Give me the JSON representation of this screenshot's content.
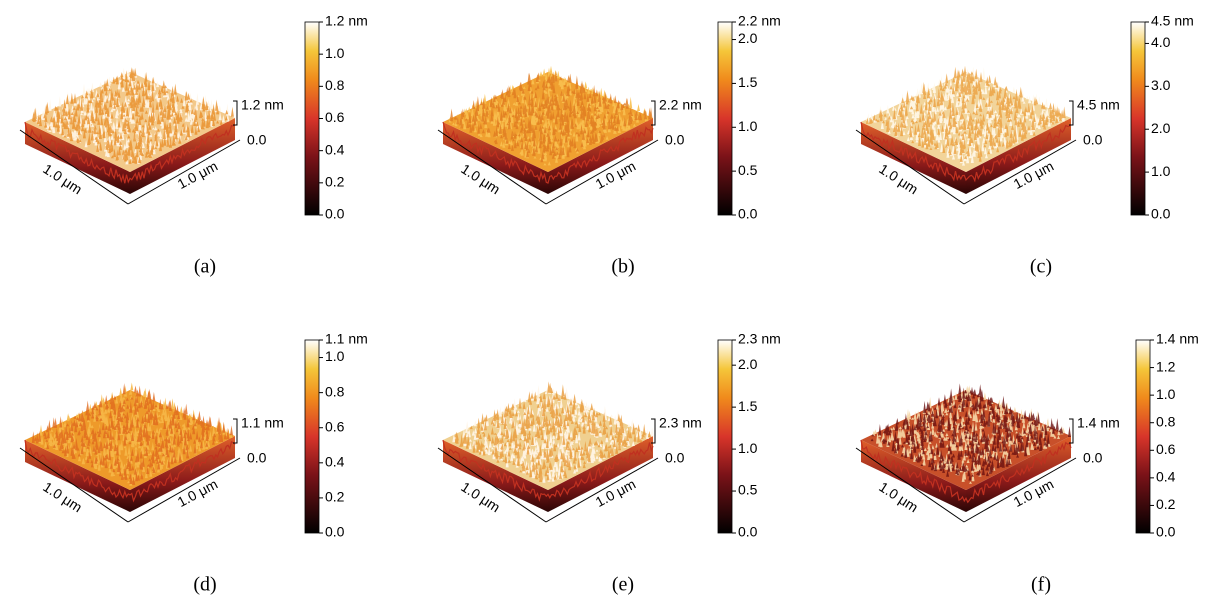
{
  "panels": [
    {
      "label": "(a)",
      "x_label": "1.0 μm",
      "y_label": "1.0 μm",
      "z_bar": {
        "top": "1.2 nm",
        "bottom": "0.0"
      },
      "colorbar": {
        "clim": [
          0,
          1.2
        ],
        "ticks": [
          {
            "value": 0,
            "label": "0.0"
          },
          {
            "value": 0.2,
            "label": "0.2"
          },
          {
            "value": 0.4,
            "label": "0.4"
          },
          {
            "value": 0.6,
            "label": "0.6"
          },
          {
            "value": 0.8,
            "label": "0.8"
          },
          {
            "value": 1,
            "label": "1.0"
          },
          {
            "value": 1.2,
            "label": "1.2 nm"
          }
        ]
      }
    },
    {
      "label": "(b)",
      "x_label": "1.0 μm",
      "y_label": "1.0 μm",
      "z_bar": {
        "top": "2.2 nm",
        "bottom": "0.0"
      },
      "colorbar": {
        "clim": [
          0,
          2.2
        ],
        "ticks": [
          {
            "value": 0,
            "label": "0.0"
          },
          {
            "value": 0.5,
            "label": "0.5"
          },
          {
            "value": 1,
            "label": "1.0"
          },
          {
            "value": 1.5,
            "label": "1.5"
          },
          {
            "value": 2,
            "label": "2.0"
          },
          {
            "value": 2.2,
            "label": "2.2 nm"
          }
        ]
      }
    },
    {
      "label": "(c)",
      "x_label": "1.0 μm",
      "y_label": "1.0 μm",
      "z_bar": {
        "top": "4.5 nm",
        "bottom": "0.0"
      },
      "colorbar": {
        "clim": [
          0,
          4.5
        ],
        "ticks": [
          {
            "value": 0,
            "label": "0.0"
          },
          {
            "value": 1,
            "label": "1.0"
          },
          {
            "value": 2,
            "label": "2.0"
          },
          {
            "value": 3,
            "label": "3.0"
          },
          {
            "value": 4,
            "label": "4.0"
          },
          {
            "value": 4.5,
            "label": "4.5 nm"
          }
        ]
      }
    },
    {
      "label": "(d)",
      "x_label": "1.0 μm",
      "y_label": "1.0 μm",
      "z_bar": {
        "top": "1.1 nm",
        "bottom": "0.0"
      },
      "colorbar": {
        "clim": [
          0,
          1.1
        ],
        "ticks": [
          {
            "value": 0,
            "label": "0.0"
          },
          {
            "value": 0.2,
            "label": "0.2"
          },
          {
            "value": 0.4,
            "label": "0.4"
          },
          {
            "value": 0.6,
            "label": "0.6"
          },
          {
            "value": 0.8,
            "label": "0.8"
          },
          {
            "value": 1,
            "label": "1.0"
          },
          {
            "value": 1.1,
            "label": "1.1 nm"
          }
        ]
      }
    },
    {
      "label": "(e)",
      "x_label": "1.0 μm",
      "y_label": "1.0 μm",
      "z_bar": {
        "top": "2.3 nm",
        "bottom": "0.0"
      },
      "colorbar": {
        "clim": [
          0,
          2.3
        ],
        "ticks": [
          {
            "value": 0,
            "label": "0.0"
          },
          {
            "value": 0.5,
            "label": "0.5"
          },
          {
            "value": 1,
            "label": "1.0"
          },
          {
            "value": 1.5,
            "label": "1.5"
          },
          {
            "value": 2,
            "label": "2.0"
          },
          {
            "value": 2.3,
            "label": "2.3 nm"
          }
        ]
      }
    },
    {
      "label": "(f)",
      "x_label": "1.0 μm",
      "y_label": "1.0 μm",
      "z_bar": {
        "top": "1.4 nm",
        "bottom": "0.0"
      },
      "colorbar": {
        "clim": [
          0,
          1.4
        ],
        "ticks": [
          {
            "value": 0,
            "label": "0.0"
          },
          {
            "value": 0.2,
            "label": "0.2"
          },
          {
            "value": 0.4,
            "label": "0.4"
          },
          {
            "value": 0.6,
            "label": "0.6"
          },
          {
            "value": 0.8,
            "label": "0.8"
          },
          {
            "value": 1,
            "label": "1.0"
          },
          {
            "value": 1.2,
            "label": "1.2"
          },
          {
            "value": 1.4,
            "label": "1.4 nm"
          }
        ]
      }
    }
  ]
}
